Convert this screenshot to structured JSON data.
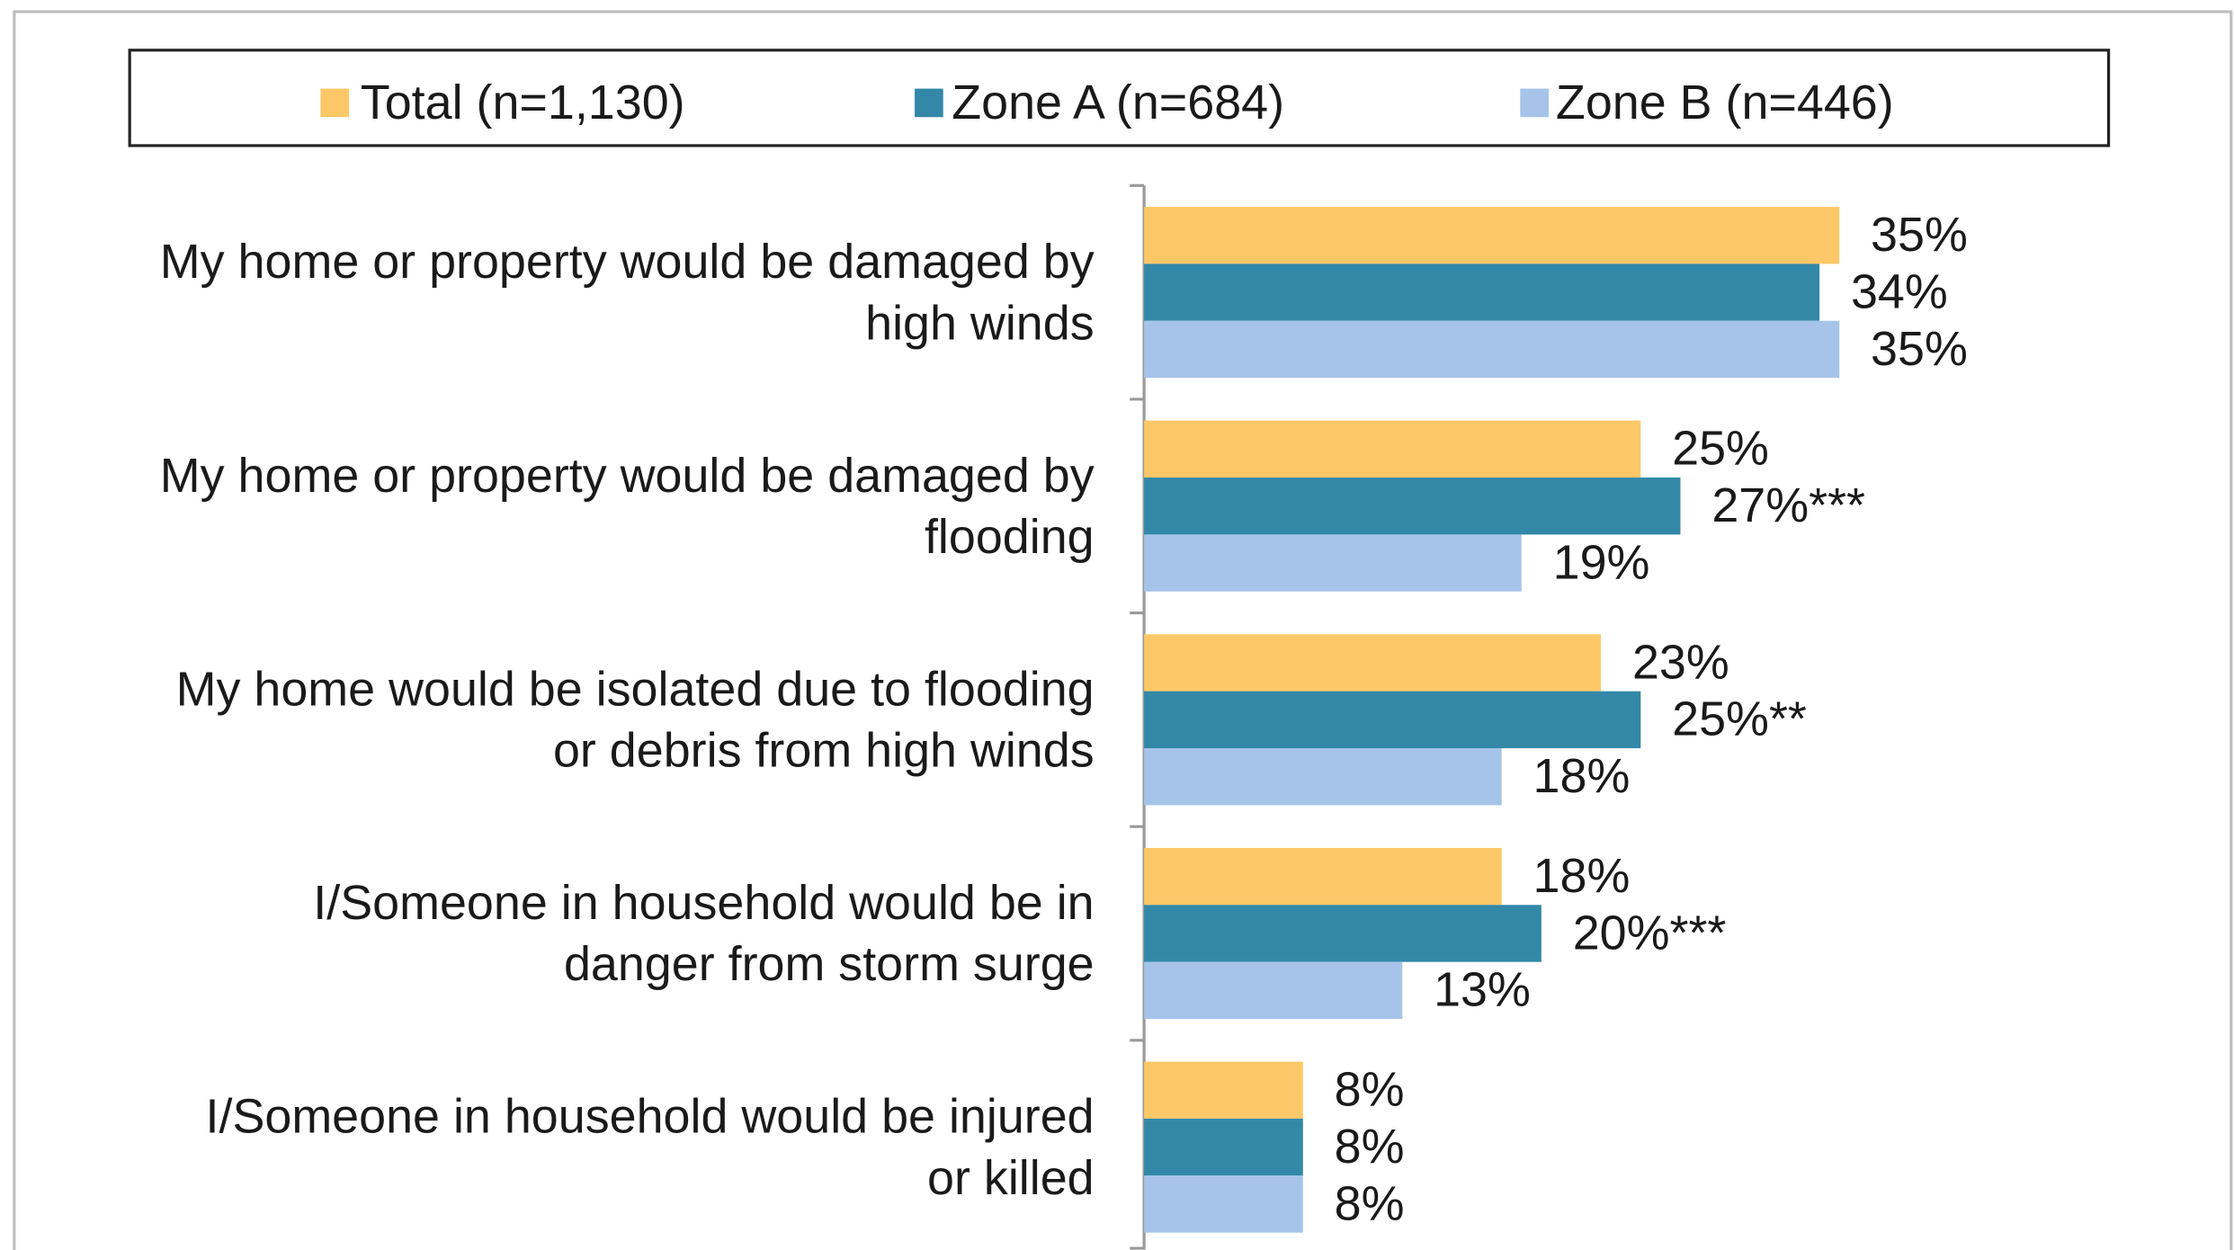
{
  "chart_data": {
    "type": "bar",
    "orientation": "horizontal",
    "categories": [
      [
        "My home or property would be damaged by",
        "high winds"
      ],
      [
        "My home or property would be damaged by",
        "flooding"
      ],
      [
        "My home would be isolated due to flooding",
        "or debris from high winds"
      ],
      [
        "I/Someone in household would be in",
        "danger from storm surge"
      ],
      [
        "I/Someone in household would be injured",
        "or killed"
      ]
    ],
    "series": [
      {
        "name": "Total (n=1,130)",
        "color": "#fcc867",
        "values": [
          35,
          25,
          23,
          18,
          8
        ],
        "value_labels": [
          "35%",
          "25%",
          "23%",
          "18%",
          "8%"
        ]
      },
      {
        "name": "Zone A (n=684)",
        "color": "#3388a8",
        "values": [
          34,
          27,
          25,
          20,
          8
        ],
        "value_labels": [
          "34%",
          "27%***",
          "25%**",
          "20%***",
          "8%"
        ]
      },
      {
        "name": "Zone B (n=446)",
        "color": "#a6c4ea",
        "values": [
          35,
          19,
          18,
          13,
          8
        ],
        "value_labels": [
          "35%",
          "19%",
          "18%",
          "13%",
          "8%"
        ]
      }
    ],
    "xlim": [
      0,
      35
    ],
    "legend": "top"
  }
}
